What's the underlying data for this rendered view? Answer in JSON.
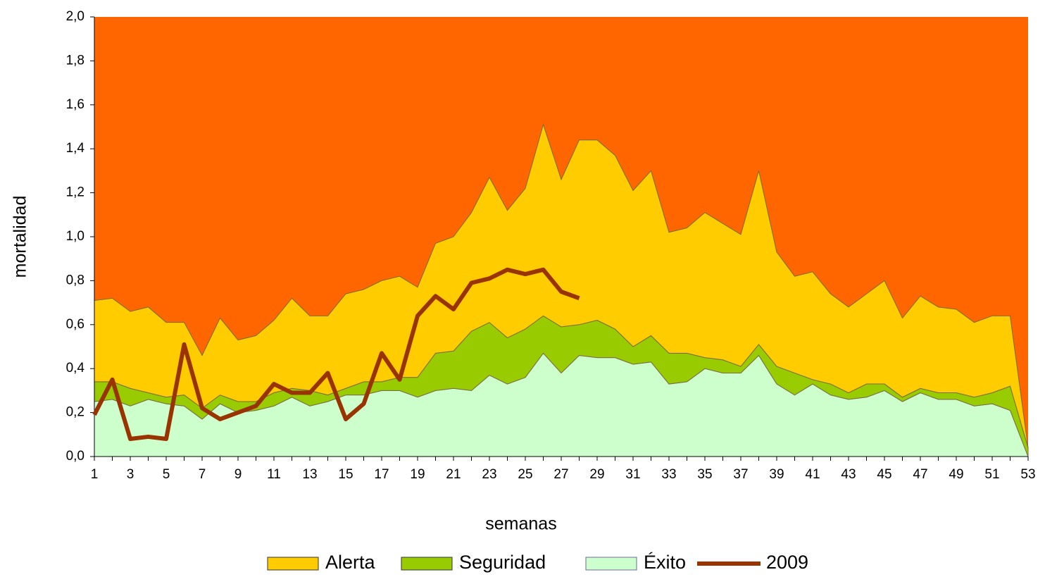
{
  "chart_data": {
    "type": "area",
    "stacked": true,
    "y_label": "mortalidad",
    "x_label": "semanas",
    "plot_background": "#ff6600",
    "categories": [
      1,
      null,
      3,
      null,
      5,
      null,
      7,
      null,
      9,
      null,
      11,
      null,
      13,
      null,
      15,
      null,
      17,
      null,
      19,
      null,
      21,
      null,
      23,
      null,
      25,
      null,
      27,
      null,
      29,
      null,
      31,
      null,
      33,
      null,
      35,
      null,
      37,
      null,
      39,
      null,
      41,
      null,
      43,
      null,
      45,
      null,
      47,
      null,
      49,
      null,
      51,
      null,
      53
    ],
    "ylim": [
      0,
      2
    ],
    "yticks": [
      {
        "value": 0,
        "label": "0,0"
      },
      {
        "value": 0.2,
        "label": "0,2"
      },
      {
        "value": 0.4,
        "label": "0,4"
      },
      {
        "value": 0.6,
        "label": "0,6"
      },
      {
        "value": 0.8,
        "label": "0,8"
      },
      {
        "value": 1,
        "label": "1,0"
      },
      {
        "value": 1.2,
        "label": "1,2"
      },
      {
        "value": 1.4,
        "label": "1,4"
      },
      {
        "value": 1.6,
        "label": "1,6"
      },
      {
        "value": 1.8,
        "label": "1,8"
      },
      {
        "value": 2,
        "label": "2,0"
      }
    ],
    "legend": "bottom",
    "series": [
      {
        "name": "Alerta",
        "color": "#ffcc00",
        "type": "area",
        "values": [
          0.37,
          0.38,
          0.35,
          0.39,
          0.34,
          0.33,
          0.24,
          0.35,
          0.28,
          0.3,
          0.33,
          0.41,
          0.34,
          0.36,
          0.43,
          0.42,
          0.46,
          0.46,
          0.41,
          0.5,
          0.52,
          0.54,
          0.66,
          0.58,
          0.64,
          0.87,
          0.67,
          0.84,
          0.82,
          0.79,
          0.71,
          0.75,
          0.55,
          0.57,
          0.66,
          0.62,
          0.6,
          0.79,
          0.52,
          0.44,
          0.49,
          0.41,
          0.39,
          0.41,
          0.47,
          0.36,
          0.42,
          0.39,
          0.38,
          0.34,
          0.35,
          0.32,
          0
        ]
      },
      {
        "name": "Seguridad",
        "color": "#99cc00",
        "type": "area",
        "values": [
          0.09,
          0.08,
          0.08,
          0.03,
          0.03,
          0.05,
          0.05,
          0.04,
          0.05,
          0.04,
          0.06,
          0.04,
          0.07,
          0.03,
          0.03,
          0.06,
          0.04,
          0.06,
          0.09,
          0.17,
          0.17,
          0.27,
          0.24,
          0.21,
          0.22,
          0.17,
          0.21,
          0.14,
          0.17,
          0.13,
          0.08,
          0.12,
          0.14,
          0.13,
          0.05,
          0.06,
          0.03,
          0.05,
          0.08,
          0.1,
          0.02,
          0.05,
          0.03,
          0.06,
          0.03,
          0.02,
          0.02,
          0.03,
          0.03,
          0.04,
          0.05,
          0.11,
          0.04
        ]
      },
      {
        "name": "Éxito",
        "color": "#ccffcc",
        "type": "area",
        "values": [
          0.25,
          0.26,
          0.23,
          0.26,
          0.24,
          0.23,
          0.17,
          0.24,
          0.2,
          0.21,
          0.23,
          0.27,
          0.23,
          0.25,
          0.28,
          0.28,
          0.3,
          0.3,
          0.27,
          0.3,
          0.31,
          0.3,
          0.37,
          0.33,
          0.36,
          0.47,
          0.38,
          0.46,
          0.45,
          0.45,
          0.42,
          0.43,
          0.33,
          0.34,
          0.4,
          0.38,
          0.38,
          0.46,
          0.33,
          0.28,
          0.33,
          0.28,
          0.26,
          0.27,
          0.3,
          0.25,
          0.29,
          0.26,
          0.26,
          0.23,
          0.24,
          0.21,
          0
        ]
      },
      {
        "name": "2009",
        "color": "#993300",
        "type": "line",
        "values": [
          0.19,
          0.35,
          0.08,
          0.09,
          0.08,
          0.51,
          0.22,
          0.17,
          0.2,
          0.23,
          0.33,
          0.29,
          0.29,
          0.38,
          0.17,
          0.24,
          0.47,
          0.35,
          0.64,
          0.73,
          0.67,
          0.79,
          0.81,
          0.85,
          0.83,
          0.85,
          0.75,
          0.72,
          null,
          null,
          null,
          null,
          null,
          null,
          null,
          null,
          null,
          null,
          null,
          null,
          null,
          null,
          null,
          null,
          null,
          null,
          null,
          null,
          null,
          null,
          null,
          null,
          null
        ]
      }
    ]
  }
}
